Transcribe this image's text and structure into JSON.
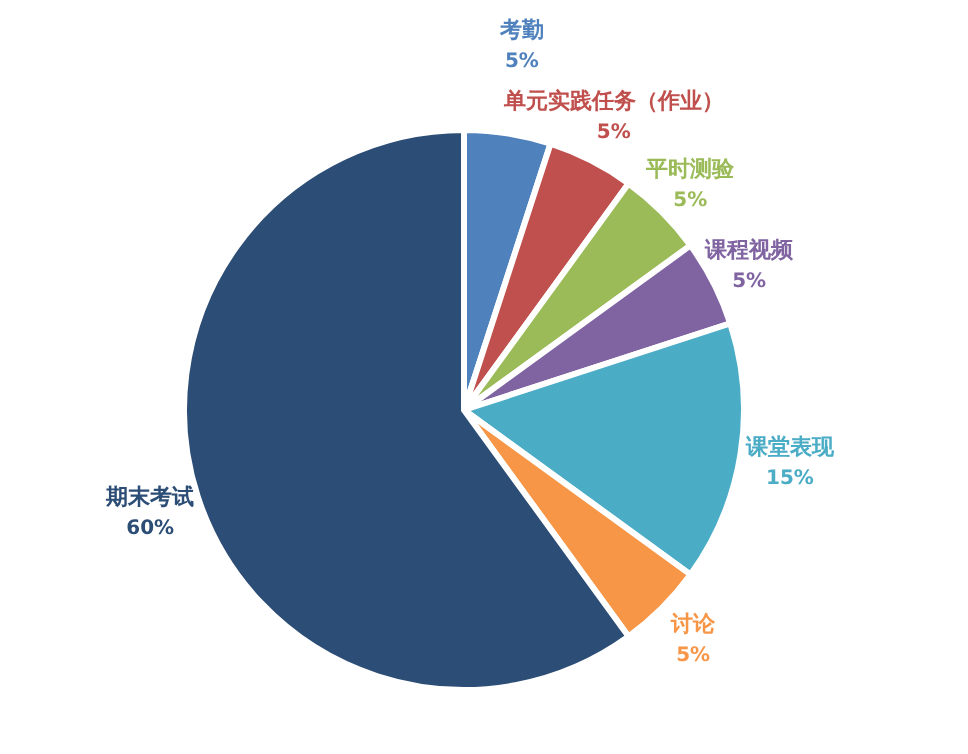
{
  "chart_data": {
    "type": "pie",
    "categories": [
      "考勤",
      "单元实践任务（作业）",
      "平时测验",
      "课程视频",
      "课堂表现",
      "讨论",
      "期末考试"
    ],
    "values": [
      5,
      5,
      5,
      5,
      15,
      5,
      60
    ],
    "colors": [
      "#4f81bd",
      "#c0504d",
      "#9bbb59",
      "#8064a2",
      "#4bacc6",
      "#f79646",
      "#2c4d75"
    ],
    "value_labels": [
      "5%",
      "5%",
      "5%",
      "5%",
      "15%",
      "5%",
      "60%"
    ]
  }
}
